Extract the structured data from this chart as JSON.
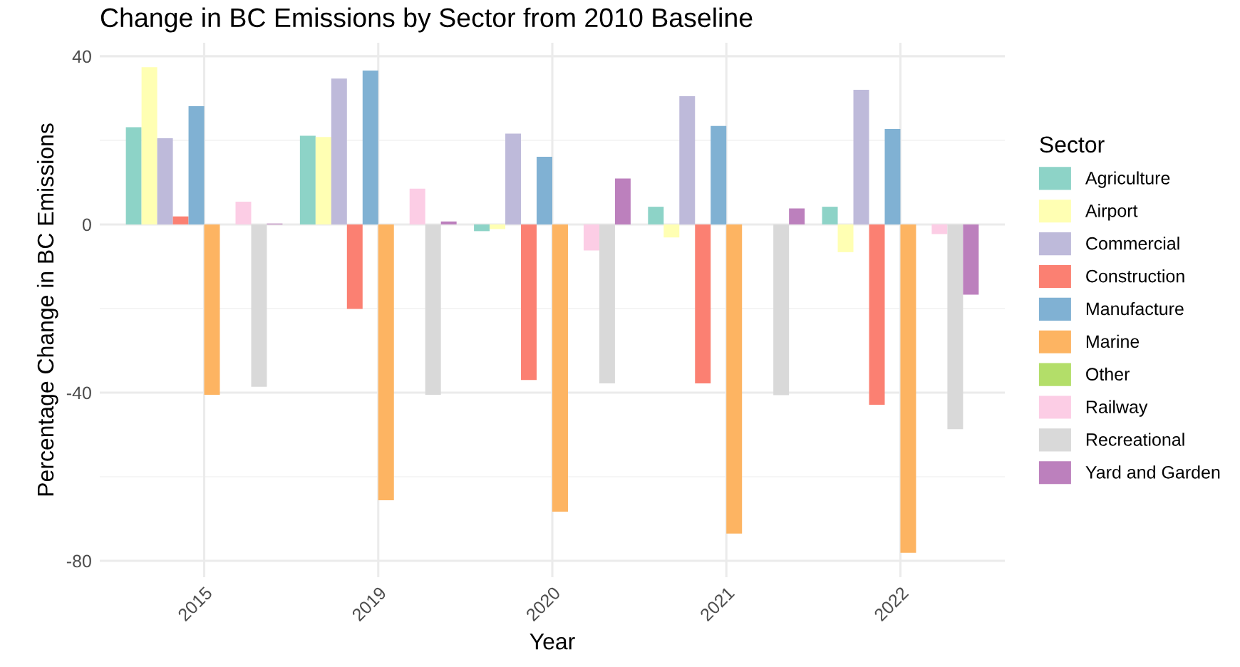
{
  "chart_data": {
    "type": "bar",
    "title": "Change in BC Emissions by Sector from 2010 Baseline",
    "xlabel": "Year",
    "ylabel": "Percentage Change in BC Emissions",
    "legend_title": "Sector",
    "legend": "right",
    "grid": true,
    "categories": [
      "2015",
      "2019",
      "2020",
      "2021",
      "2022"
    ],
    "ylim": [
      -83.9,
      43.2
    ],
    "yticks": [
      {
        "value": 40,
        "label": "40"
      },
      {
        "value": 0,
        "label": "0"
      },
      {
        "value": -40,
        "label": "-40"
      },
      {
        "value": -80,
        "label": "-80"
      }
    ],
    "series": [
      {
        "name": "Agriculture",
        "color": "#8dd3c7",
        "values": [
          23.1,
          21.1,
          -1.6,
          4.2,
          4.2
        ]
      },
      {
        "name": "Airport",
        "color": "#ffffb3",
        "values": [
          37.4,
          20.8,
          -1.1,
          -3.1,
          -6.6
        ]
      },
      {
        "name": "Commercial",
        "color": "#bebada",
        "values": [
          20.5,
          34.7,
          21.6,
          30.5,
          32.0
        ]
      },
      {
        "name": "Construction",
        "color": "#fb8072",
        "values": [
          1.9,
          -20.1,
          -37.0,
          -37.8,
          -42.9
        ]
      },
      {
        "name": "Manufacture",
        "color": "#80b1d3",
        "values": [
          28.1,
          36.6,
          16.1,
          23.4,
          22.7
        ]
      },
      {
        "name": "Marine",
        "color": "#fdb462",
        "values": [
          -40.5,
          -65.6,
          -68.3,
          -73.5,
          -78.1
        ]
      },
      {
        "name": "Other",
        "color": "#b3de69",
        "values": [
          0,
          0,
          0,
          0,
          0
        ]
      },
      {
        "name": "Railway",
        "color": "#fccde5",
        "values": [
          5.4,
          8.5,
          -6.2,
          null,
          -2.3
        ]
      },
      {
        "name": "Recreational",
        "color": "#d9d9d9",
        "values": [
          -38.6,
          -40.5,
          -37.8,
          -40.6,
          -48.7
        ]
      },
      {
        "name": "Yard and Garden",
        "color": "#bc80bd",
        "values": [
          0.2,
          0.7,
          10.9,
          3.8,
          -16.7
        ]
      }
    ]
  }
}
